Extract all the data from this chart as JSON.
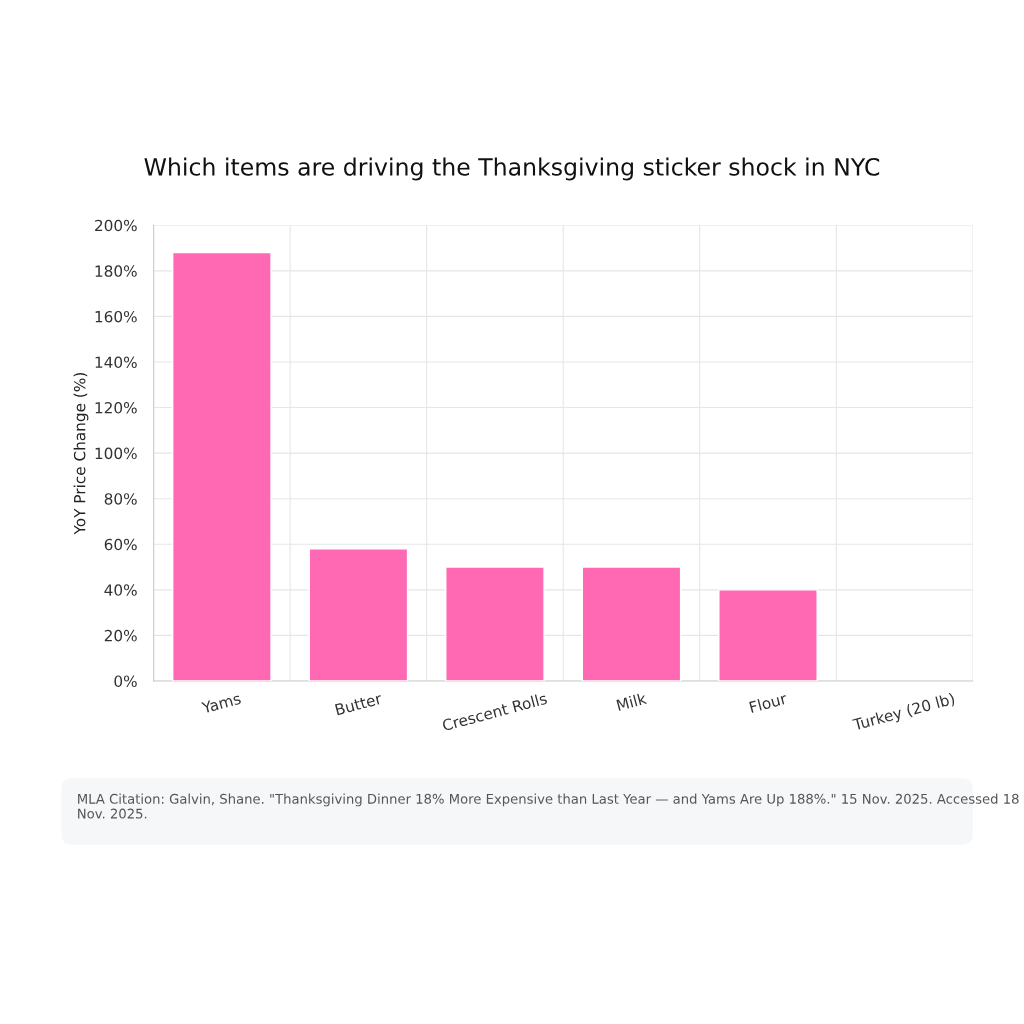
{
  "chart_data": {
    "type": "bar",
    "title": "Which items are driving the Thanksgiving sticker shock in NYC",
    "ylabel": "YoY Price Change (%)",
    "categories": [
      "Yams",
      "Butter",
      "Crescent Rolls",
      "Milk",
      "Flour",
      "Turkey (20 lb)"
    ],
    "values": [
      188,
      58,
      50,
      50,
      40,
      null
    ],
    "color": "#ff69b4",
    "ylim": [
      0,
      200
    ],
    "yticks": [
      {
        "value": 0,
        "label": "0%"
      },
      {
        "value": 20,
        "label": "20%"
      },
      {
        "value": 40,
        "label": "40%"
      },
      {
        "value": 60,
        "label": "60%"
      },
      {
        "value": 80,
        "label": "80%"
      },
      {
        "value": 100,
        "label": "100%"
      },
      {
        "value": 120,
        "label": "120%"
      },
      {
        "value": 140,
        "label": "140%"
      },
      {
        "value": 160,
        "label": "160%"
      },
      {
        "value": 180,
        "label": "180%"
      },
      {
        "value": 200,
        "label": "200%"
      }
    ],
    "grid": true,
    "annotations": [
      "MLA Citation: Galvin, Shane. \"Thanksgiving Dinner 18% More Expensive than Last Year — and Yams Are Up 188%.\" 15 Nov. 2025. Accessed 18 Nov. 2025."
    ]
  }
}
